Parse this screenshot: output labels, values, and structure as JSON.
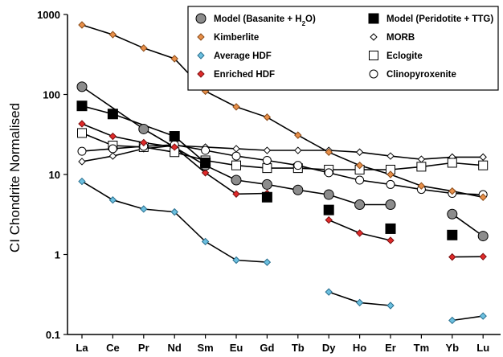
{
  "chart_data": {
    "type": "line",
    "title": "",
    "xlabel": "",
    "ylabel": "CI Chondrite Normalised",
    "y_scale": "log",
    "ylim": [
      0.1,
      1000
    ],
    "y_ticks": [
      "0.1",
      "1",
      "10",
      "100",
      "1000"
    ],
    "categories": [
      "La",
      "Ce",
      "Pr",
      "Nd",
      "Sm",
      "Eu",
      "Gd",
      "Tb",
      "Dy",
      "Ho",
      "Er",
      "Tm",
      "Yb",
      "Lu"
    ],
    "legend_position": "top-right",
    "grid": false,
    "series": [
      {
        "name_parts": [
          [
            "Model (Basanite + H",
            ""
          ],
          [
            "2",
            "sub"
          ],
          [
            "O)",
            ""
          ]
        ],
        "marker": "circle",
        "fill": "#8c8c8c",
        "stroke": "#000000",
        "size": 12,
        "line": true,
        "values": [
          125,
          null,
          37,
          null,
          13,
          8.5,
          7.5,
          6.4,
          5.6,
          4.2,
          4.2,
          null,
          3.2,
          1.7
        ],
        "segments": [
          [
            0,
            2
          ],
          [
            2,
            4
          ],
          [
            4,
            10
          ],
          [
            12,
            13
          ]
        ]
      },
      {
        "name": "Model (Peridotite + TTG)",
        "marker": "square",
        "fill": "#000000",
        "stroke": "#000000",
        "size": 12,
        "line": true,
        "values": [
          72,
          57,
          null,
          30,
          14,
          null,
          5.2,
          null,
          3.6,
          null,
          2.1,
          null,
          1.75,
          null
        ],
        "segments": [
          [
            0,
            1
          ],
          [
            1,
            3
          ],
          [
            3,
            4
          ]
        ]
      },
      {
        "name": "Kimberlite",
        "marker": "diamond",
        "fill": "#e8904a",
        "stroke": "#8a4a18",
        "size": 8,
        "line": true,
        "values": [
          740,
          560,
          380,
          280,
          110,
          70,
          52,
          31,
          19,
          13,
          10,
          7.2,
          6.2,
          5.2
        ],
        "segments": [
          [
            0,
            13
          ]
        ]
      },
      {
        "name": "MORB",
        "marker": "diamond",
        "fill": "#ffffff",
        "stroke": "#000000",
        "size": 8,
        "line": true,
        "values": [
          14.5,
          17,
          21,
          23,
          22,
          21,
          20,
          20,
          20,
          19,
          17,
          15.5,
          16.5,
          16.5
        ],
        "segments": [
          [
            0,
            13
          ]
        ]
      },
      {
        "name": "Average HDF",
        "marker": "diamond",
        "fill": "#6cc0e0",
        "stroke": "#2a6f8e",
        "size": 8,
        "line": true,
        "values": [
          8.2,
          4.8,
          3.7,
          3.4,
          1.45,
          0.85,
          0.8,
          null,
          0.34,
          0.25,
          0.23,
          null,
          0.15,
          0.17
        ],
        "segments": [
          [
            0,
            6
          ],
          [
            8,
            10
          ],
          [
            12,
            13
          ]
        ]
      },
      {
        "name": "Eclogite",
        "marker": "square",
        "fill": "#ffffff",
        "stroke": "#000000",
        "size": 11,
        "line": true,
        "values": [
          33,
          23,
          22,
          19,
          15,
          13,
          12,
          12,
          11.5,
          11.5,
          11.5,
          12.5,
          14,
          13
        ],
        "segments": [
          [
            0,
            13
          ]
        ]
      },
      {
        "name": "Enriched HDF",
        "marker": "diamond",
        "fill": "#e02a2a",
        "stroke": "#7a1010",
        "size": 8,
        "line": true,
        "values": [
          43,
          30,
          25,
          22,
          10.5,
          5.7,
          5.8,
          null,
          2.7,
          1.85,
          1.5,
          null,
          0.93,
          0.94
        ],
        "segments": [
          [
            0,
            6
          ],
          [
            8,
            10
          ],
          [
            12,
            13
          ]
        ]
      },
      {
        "name": "Clinopyroxenite",
        "marker": "circle",
        "fill": "#ffffff",
        "stroke": "#000000",
        "size": 10,
        "line": true,
        "values": [
          19.5,
          21,
          22.5,
          23.5,
          20,
          17,
          15,
          13,
          10.5,
          8.5,
          7.5,
          6.5,
          5.8,
          5.6
        ],
        "segments": [
          [
            0,
            13
          ]
        ]
      }
    ]
  }
}
